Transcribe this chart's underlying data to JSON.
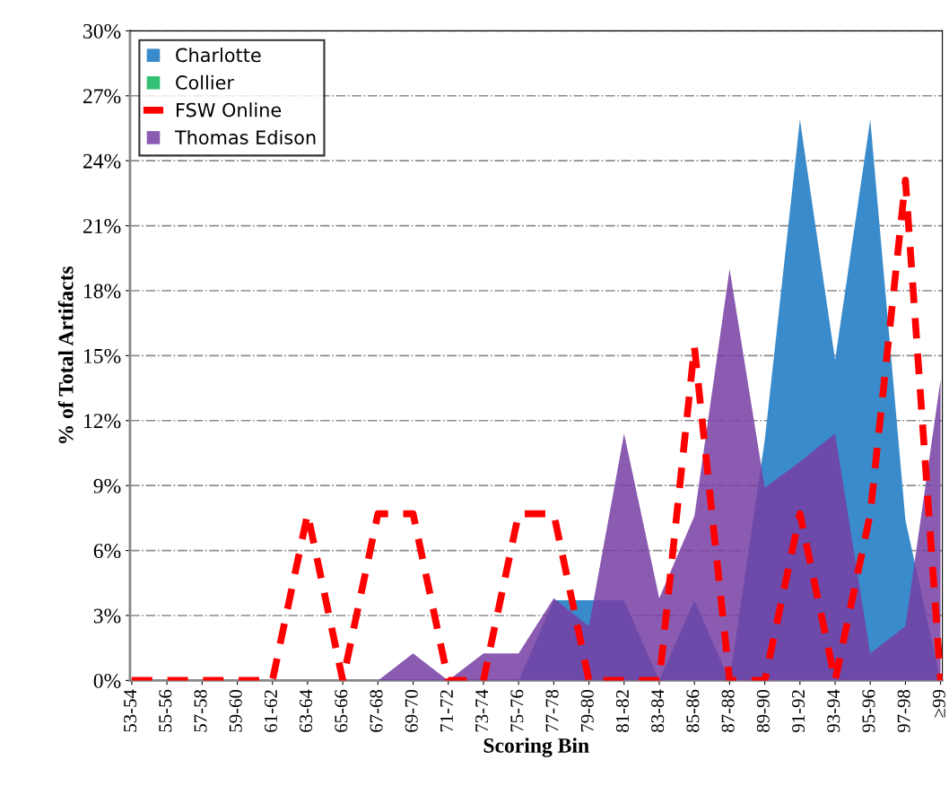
{
  "chart_data": {
    "type": "area",
    "xlabel": "Scoring Bin",
    "ylabel": "% of Total Artifacts",
    "categories": [
      "53-54",
      "55-56",
      "57-58",
      "59-60",
      "61-62",
      "63-64",
      "65-66",
      "67-68",
      "69-70",
      "71-72",
      "73-74",
      "75-76",
      "77-78",
      "79-80",
      "81-82",
      "83-84",
      "85-86",
      "87-88",
      "89-90",
      "91-92",
      "93-94",
      "95-96",
      "97-98",
      "≥99"
    ],
    "series": [
      {
        "name": "Charlotte",
        "color": "#3a8bcb",
        "values": [
          0,
          0,
          0,
          0,
          0,
          0,
          0,
          0,
          0,
          0,
          0,
          0,
          3.7,
          3.7,
          3.7,
          0,
          3.7,
          0,
          11.1,
          25.9,
          14.8,
          25.9,
          7.4,
          0
        ]
      },
      {
        "name": "Collier",
        "color": "#33bf74",
        "values": [
          null,
          null,
          null,
          null,
          null,
          null,
          null,
          null,
          null,
          null,
          null,
          null,
          null,
          null,
          null,
          null,
          null,
          null,
          null,
          null,
          null,
          null,
          null,
          null
        ]
      },
      {
        "name": "FSW Online",
        "type": "line",
        "color": "#ff0000",
        "line_style": "dashed",
        "values": [
          0,
          0,
          0,
          0,
          0,
          7.7,
          0,
          7.7,
          7.7,
          0,
          0,
          7.7,
          7.7,
          0,
          0,
          0,
          15.4,
          0,
          0,
          7.7,
          0,
          7.7,
          23.1,
          0
        ]
      },
      {
        "name": "Thomas Edison",
        "color": "#8b5bb1",
        "values": [
          0,
          0,
          0,
          0,
          0,
          0,
          0,
          0,
          1.25,
          0,
          1.25,
          1.25,
          3.8,
          2.5,
          11.4,
          3.8,
          7.6,
          19.0,
          8.9,
          10.1,
          11.4,
          1.25,
          2.5,
          13.9
        ]
      }
    ],
    "ylim": [
      0,
      30
    ],
    "yticks": [
      {
        "value": 0,
        "label": "0%"
      },
      {
        "value": 3,
        "label": "3%"
      },
      {
        "value": 6,
        "label": "6%"
      },
      {
        "value": 9,
        "label": "9%"
      },
      {
        "value": 12,
        "label": "12%"
      },
      {
        "value": 15,
        "label": "15%"
      },
      {
        "value": 18,
        "label": "18%"
      },
      {
        "value": 21,
        "label": "21%"
      },
      {
        "value": 24,
        "label": "24%"
      },
      {
        "value": 27,
        "label": "27%"
      },
      {
        "value": 30,
        "label": "30%"
      }
    ],
    "grid": "y",
    "legend": "top left"
  }
}
